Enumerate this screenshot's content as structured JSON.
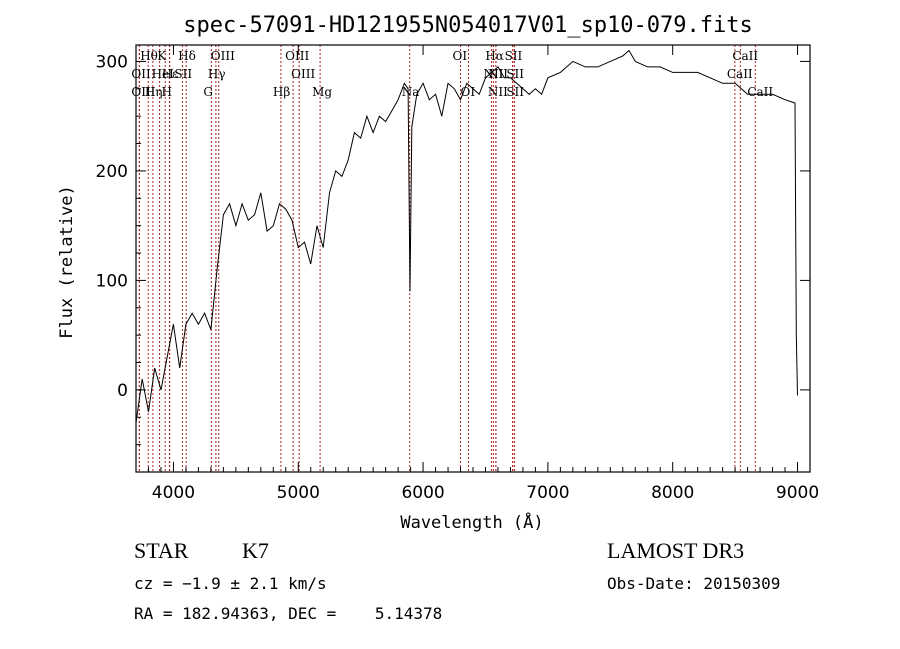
{
  "chart_data": {
    "type": "line",
    "title": "spec-57091-HD121955N054017V01_sp10-079.fits",
    "xlabel": "Wavelength (Å)",
    "ylabel": "Flux (relative)",
    "xlim": [
      3700,
      9100
    ],
    "ylim": [
      -75,
      315
    ],
    "xticks": [
      4000,
      5000,
      6000,
      7000,
      8000,
      9000
    ],
    "yticks": [
      0,
      100,
      200,
      300
    ],
    "series": [
      {
        "x": [
          3700,
          3750,
          3800,
          3850,
          3900,
          3950,
          4000,
          4050,
          4100,
          4150,
          4200,
          4250,
          4300,
          4350,
          4400,
          4450,
          4500,
          4550,
          4600,
          4650,
          4700,
          4750,
          4800,
          4850,
          4900,
          4950,
          5000,
          5050,
          5100,
          5150,
          5200,
          5250,
          5300,
          5350,
          5400,
          5450,
          5500,
          5550,
          5600,
          5650,
          5700,
          5750,
          5800,
          5850,
          5880,
          5895,
          5910,
          5950,
          6000,
          6050,
          6100,
          6150,
          6200,
          6250,
          6300,
          6350,
          6400,
          6450,
          6500,
          6550,
          6600,
          6650,
          6700,
          6750,
          6800,
          6850,
          6900,
          6950,
          7000,
          7100,
          7200,
          7300,
          7400,
          7500,
          7600,
          7650,
          7700,
          7800,
          7900,
          8000,
          8100,
          8200,
          8300,
          8400,
          8500,
          8600,
          8700,
          8800,
          8900,
          8980,
          8990,
          9000
        ],
        "y": [
          -30,
          10,
          -20,
          20,
          0,
          30,
          60,
          20,
          60,
          70,
          60,
          70,
          55,
          110,
          160,
          170,
          150,
          170,
          155,
          160,
          180,
          145,
          150,
          170,
          165,
          155,
          130,
          135,
          115,
          150,
          130,
          180,
          200,
          195,
          210,
          235,
          230,
          250,
          235,
          250,
          245,
          255,
          265,
          280,
          275,
          90,
          240,
          270,
          280,
          265,
          270,
          250,
          280,
          275,
          265,
          280,
          275,
          270,
          285,
          290,
          295,
          285,
          285,
          280,
          275,
          270,
          275,
          270,
          285,
          290,
          300,
          295,
          295,
          300,
          305,
          310,
          300,
          295,
          295,
          290,
          290,
          290,
          285,
          280,
          280,
          270,
          270,
          270,
          265,
          262,
          50,
          -5
        ]
      }
    ],
    "lines": [
      {
        "label": "Hθ",
        "x": 3798,
        "row": 0
      },
      {
        "label": "K",
        "x": 3934,
        "row": 0
      },
      {
        "label": "Hδ",
        "x": 4102,
        "row": 0
      },
      {
        "label": "OIII",
        "x": 4363,
        "row": 0
      },
      {
        "label": "OIII",
        "x": 4959,
        "row": 0
      },
      {
        "label": "OI",
        "x": 6300,
        "row": 0
      },
      {
        "label": "Hα",
        "x": 6563,
        "row": 0
      },
      {
        "label": "SII",
        "x": 6717,
        "row": 0
      },
      {
        "label": "CaII",
        "x": 8542,
        "row": 0
      },
      {
        "label": "OII",
        "x": 3727,
        "row": 1
      },
      {
        "label": "Hε",
        "x": 3970,
        "row": 1
      },
      {
        "label": "HeI",
        "x": 3889,
        "row": 1
      },
      {
        "label": "SII",
        "x": 4072,
        "row": 1
      },
      {
        "label": "Hγ",
        "x": 4340,
        "row": 1
      },
      {
        "label": "OIII",
        "x": 5007,
        "row": 1
      },
      {
        "label": "NII",
        "x": 6548,
        "row": 1
      },
      {
        "label": "NII",
        "x": 6584,
        "row": 1
      },
      {
        "label": "SII",
        "x": 6731,
        "row": 1
      },
      {
        "label": "CaII",
        "x": 8498,
        "row": 1
      },
      {
        "label": "OIII",
        "x": 3727,
        "row": 2
      },
      {
        "label": "Hη",
        "x": 3835,
        "row": 2
      },
      {
        "label": "H",
        "x": 3968,
        "row": 2
      },
      {
        "label": "G",
        "x": 4304,
        "row": 2
      },
      {
        "label": "Hβ",
        "x": 4861,
        "row": 2
      },
      {
        "label": "Mg",
        "x": 5175,
        "row": 2
      },
      {
        "label": "Na",
        "x": 5893,
        "row": 2
      },
      {
        "label": "OI",
        "x": 6364,
        "row": 2
      },
      {
        "label": "NII",
        "x": 6583,
        "row": 2
      },
      {
        "label": "SII",
        "x": 6731,
        "row": 2
      },
      {
        "label": "CaII",
        "x": 8662,
        "row": 2
      }
    ]
  },
  "info": {
    "class_label": "STAR",
    "subclass": "K7",
    "cz": "cz = −1.9 ± 2.1 km/s",
    "coords": "RA = 182.94363, DEC =    5.14378",
    "survey": "LAMOST DR3",
    "obs_date": "Obs-Date: 20150309"
  }
}
